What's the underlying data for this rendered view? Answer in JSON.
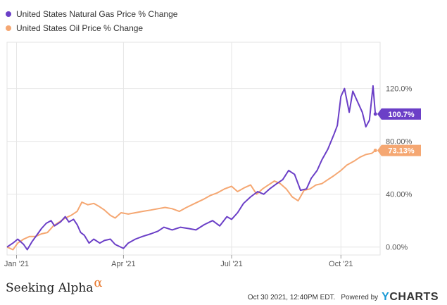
{
  "chart_data": {
    "type": "line",
    "x_axis": {
      "min": "2020-12-24",
      "max": "2021-11-03",
      "ticks": [
        {
          "date": "2021-01-01",
          "label": "Jan '21"
        },
        {
          "date": "2021-04-01",
          "label": "Apr '21"
        },
        {
          "date": "2021-07-01",
          "label": "Jul '21"
        },
        {
          "date": "2021-10-01",
          "label": "Oct '21"
        }
      ]
    },
    "y_axis": {
      "min": -6,
      "max": 155,
      "ticks": [
        {
          "value": 0,
          "label": "0.00%"
        },
        {
          "value": 40,
          "label": "40.00%"
        },
        {
          "value": 80,
          "label": "80.00%"
        },
        {
          "value": 120,
          "label": "120.0%"
        }
      ],
      "grid": true
    },
    "legend_position": "top-left",
    "series": [
      {
        "name": "United States Natural Gas Price % Change",
        "color": "#6b3fc7",
        "end_label": "100.7%",
        "points": [
          [
            "2020-12-24",
            0
          ],
          [
            "2020-12-29",
            3
          ],
          [
            "2021-01-02",
            6
          ],
          [
            "2021-01-07",
            2
          ],
          [
            "2021-01-10",
            -2
          ],
          [
            "2021-01-14",
            4
          ],
          [
            "2021-01-18",
            9
          ],
          [
            "2021-01-22",
            14
          ],
          [
            "2021-01-26",
            18
          ],
          [
            "2021-01-30",
            20
          ],
          [
            "2021-02-02",
            16
          ],
          [
            "2021-02-07",
            19
          ],
          [
            "2021-02-11",
            23
          ],
          [
            "2021-02-14",
            19
          ],
          [
            "2021-02-18",
            21
          ],
          [
            "2021-02-21",
            17
          ],
          [
            "2021-02-24",
            11
          ],
          [
            "2021-02-27",
            9
          ],
          [
            "2021-03-03",
            3
          ],
          [
            "2021-03-07",
            6
          ],
          [
            "2021-03-12",
            3
          ],
          [
            "2021-03-16",
            5
          ],
          [
            "2021-03-21",
            6
          ],
          [
            "2021-03-25",
            2
          ],
          [
            "2021-04-01",
            -1
          ],
          [
            "2021-04-05",
            3
          ],
          [
            "2021-04-11",
            6
          ],
          [
            "2021-04-17",
            8
          ],
          [
            "2021-04-24",
            10
          ],
          [
            "2021-04-30",
            12
          ],
          [
            "2021-05-05",
            15
          ],
          [
            "2021-05-12",
            13
          ],
          [
            "2021-05-19",
            15
          ],
          [
            "2021-05-26",
            14
          ],
          [
            "2021-06-01",
            13
          ],
          [
            "2021-06-08",
            17
          ],
          [
            "2021-06-15",
            20
          ],
          [
            "2021-06-21",
            16
          ],
          [
            "2021-06-27",
            23
          ],
          [
            "2021-07-01",
            21
          ],
          [
            "2021-07-06",
            26
          ],
          [
            "2021-07-11",
            33
          ],
          [
            "2021-07-17",
            38
          ],
          [
            "2021-07-23",
            42
          ],
          [
            "2021-07-28",
            40
          ],
          [
            "2021-08-02",
            44
          ],
          [
            "2021-08-08",
            48
          ],
          [
            "2021-08-13",
            51
          ],
          [
            "2021-08-18",
            58
          ],
          [
            "2021-08-23",
            55
          ],
          [
            "2021-08-28",
            43
          ],
          [
            "2021-09-02",
            44
          ],
          [
            "2021-09-06",
            52
          ],
          [
            "2021-09-11",
            58
          ],
          [
            "2021-09-15",
            66
          ],
          [
            "2021-09-20",
            74
          ],
          [
            "2021-09-25",
            85
          ],
          [
            "2021-09-28",
            92
          ],
          [
            "2021-10-01",
            114
          ],
          [
            "2021-10-04",
            120
          ],
          [
            "2021-10-08",
            102
          ],
          [
            "2021-10-11",
            118
          ],
          [
            "2021-10-15",
            110
          ],
          [
            "2021-10-19",
            102
          ],
          [
            "2021-10-22",
            91
          ],
          [
            "2021-10-25",
            96
          ],
          [
            "2021-10-28",
            122
          ],
          [
            "2021-10-30",
            100.7
          ]
        ]
      },
      {
        "name": "United States Oil Price % Change",
        "color": "#f5a772",
        "end_label": "73.13%",
        "points": [
          [
            "2020-12-24",
            0
          ],
          [
            "2020-12-29",
            -2
          ],
          [
            "2021-01-02",
            3
          ],
          [
            "2021-01-07",
            6
          ],
          [
            "2021-01-12",
            8
          ],
          [
            "2021-01-17",
            8
          ],
          [
            "2021-01-22",
            10
          ],
          [
            "2021-01-27",
            11
          ],
          [
            "2021-02-01",
            16
          ],
          [
            "2021-02-06",
            19
          ],
          [
            "2021-02-11",
            22
          ],
          [
            "2021-02-16",
            24
          ],
          [
            "2021-02-21",
            27
          ],
          [
            "2021-02-25",
            34
          ],
          [
            "2021-03-02",
            32
          ],
          [
            "2021-03-07",
            33
          ],
          [
            "2021-03-11",
            31
          ],
          [
            "2021-03-16",
            28
          ],
          [
            "2021-03-21",
            24
          ],
          [
            "2021-03-25",
            22
          ],
          [
            "2021-03-30",
            26
          ],
          [
            "2021-04-05",
            25
          ],
          [
            "2021-04-11",
            26
          ],
          [
            "2021-04-17",
            27
          ],
          [
            "2021-04-24",
            28
          ],
          [
            "2021-04-30",
            29
          ],
          [
            "2021-05-06",
            30
          ],
          [
            "2021-05-12",
            29
          ],
          [
            "2021-05-18",
            27
          ],
          [
            "2021-05-24",
            30
          ],
          [
            "2021-05-31",
            33
          ],
          [
            "2021-06-07",
            36
          ],
          [
            "2021-06-13",
            39
          ],
          [
            "2021-06-19",
            41
          ],
          [
            "2021-06-25",
            44
          ],
          [
            "2021-07-01",
            46
          ],
          [
            "2021-07-06",
            42
          ],
          [
            "2021-07-12",
            45
          ],
          [
            "2021-07-17",
            47
          ],
          [
            "2021-07-22",
            40
          ],
          [
            "2021-07-27",
            44
          ],
          [
            "2021-08-01",
            47
          ],
          [
            "2021-08-06",
            50
          ],
          [
            "2021-08-11",
            48
          ],
          [
            "2021-08-16",
            44
          ],
          [
            "2021-08-21",
            38
          ],
          [
            "2021-08-26",
            35
          ],
          [
            "2021-08-31",
            43
          ],
          [
            "2021-09-05",
            44
          ],
          [
            "2021-09-10",
            47
          ],
          [
            "2021-09-15",
            48
          ],
          [
            "2021-09-20",
            51
          ],
          [
            "2021-09-25",
            54
          ],
          [
            "2021-10-01",
            58
          ],
          [
            "2021-10-06",
            62
          ],
          [
            "2021-10-12",
            65
          ],
          [
            "2021-10-17",
            68
          ],
          [
            "2021-10-22",
            70
          ],
          [
            "2021-10-27",
            71
          ],
          [
            "2021-10-30",
            73.13
          ]
        ]
      }
    ]
  },
  "footer": {
    "brand_left": "Seeking Alpha",
    "brand_left_symbol": "α",
    "timestamp": "Oct 30 2021, 12:40PM EDT.",
    "powered_by": "Powered by",
    "brand_right_y": "Y",
    "brand_right_rest": "CHARTS"
  }
}
